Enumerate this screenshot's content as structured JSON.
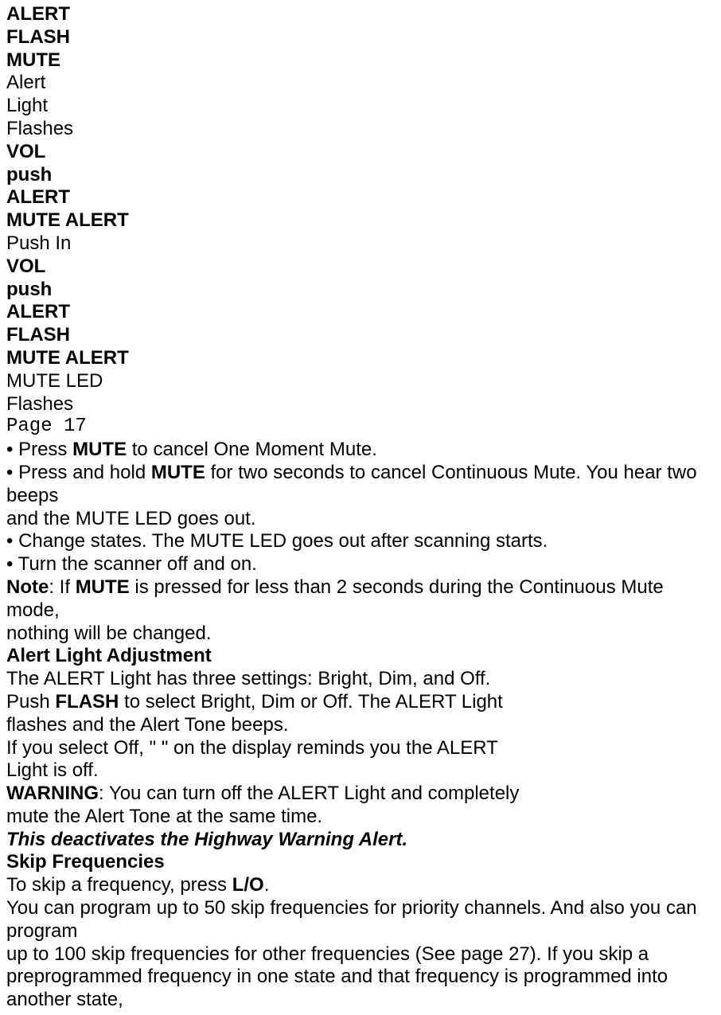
{
  "lines": {
    "l01": "ALERT",
    "l02": "FLASH",
    "l03": "MUTE",
    "l04": "Alert",
    "l05": "Light",
    "l06": "Flashes",
    "l07": "VOL",
    "l08": "push",
    "l09": "ALERT",
    "l10": "MUTE ALERT",
    "l11": "Push In",
    "l12": "VOL",
    "l13": "push",
    "l14": "ALERT",
    "l15": "FLASH",
    "l16": "MUTE ALERT",
    "l17": "MUTE LED",
    "l18": "Flashes",
    "l19": "Page 17",
    "l20_pre": "• Press ",
    "l20_bold": "MUTE",
    "l20_post": " to cancel One Moment Mute.",
    "l21_pre": "• Press and hold ",
    "l21_bold": "MUTE",
    "l21_post": " for two seconds to cancel Continuous Mute. You hear two beeps",
    "l22": "and the MUTE LED goes out.",
    "l23": "• Change states. The MUTE LED goes out after scanning starts.",
    "l24": "• Turn the scanner off and on.",
    "l25_bold1": "Note",
    "l25_mid": ": If ",
    "l25_bold2": "MUTE",
    "l25_post": " is pressed for less than 2 seconds during the Continuous Mute mode,",
    "l26": "nothing will be changed.",
    "l27": "Alert Light Adjustment",
    "l28": "The ALERT Light has three settings: Bright, Dim, and Off.",
    "l29_pre": "Push ",
    "l29_bold": "FLASH",
    "l29_post": " to select Bright, Dim or Off. The ALERT Light",
    "l30": "flashes and the Alert Tone beeps.",
    "l31": "If you select Off, \" \" on the display reminds you the ALERT",
    "l32": "Light is off.",
    "l33_bold": "WARNING",
    "l33_post": ": You can turn off the ALERT Light and completely",
    "l34": "mute the Alert Tone at the same time.",
    "l35": "This deactivates the Highway Warning Alert.",
    "l36": "Skip Frequencies",
    "l37_pre": "To skip a frequency, press ",
    "l37_bold": "L/O",
    "l37_post": ".",
    "l38": "You can program up to 50 skip frequencies for priority channels. And also you can program",
    "l39": "up to 100 skip frequencies for other frequencies (See page 27). If you skip a preprogrammed frequency in one state and that frequency is programmed into another state,"
  }
}
